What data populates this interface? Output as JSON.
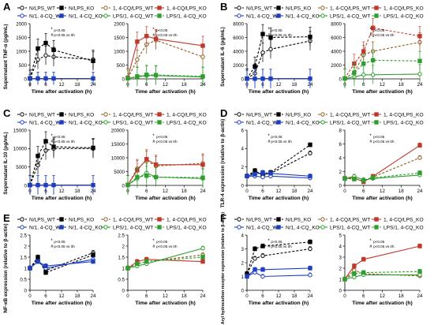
{
  "colors": {
    "N_LPS_WT": "#000000",
    "N_LPS_KO": "#000000",
    "CQ_LPS_WT": "#8c5a1a",
    "CQ_LPS_KO": "#c0392b",
    "N_CQ_WT": "#1f3fbf",
    "N_CQ_KO": "#1f3fbf",
    "LPS_CQ_WT": "#2e9e2e",
    "LPS_CQ_KO": "#2e9e2e"
  },
  "legend_labels": {
    "N_LPS_WT": "N/LPS_WT",
    "N_LPS_KO": "N/LPS_KO",
    "CQ_LPS_WT": "1, 4-CQ/LPS_WT",
    "CQ_LPS_KO": "1, 4-CQ/LPS_KO",
    "N_CQ_WT": "N/1, 4-CQ_WT",
    "N_CQ_KO": "N/1, 4-CQ_KO",
    "LPS_CQ_WT": "LPS/1, 4-CQ_WT",
    "LPS_CQ_KO": "LPS/1, 4-CQ_KO"
  },
  "sig_notes": {
    "p005": "p<0.05",
    "p005_vs0h": "p<0.05 vs 0h"
  },
  "chart_data": [
    {
      "panel": "A",
      "type": "line",
      "ylabel": "Supernatant TNF-α (pg/mL)",
      "xlabel": "Time after activation (h)",
      "x": [
        0,
        3,
        6,
        9,
        24
      ],
      "xticks": [
        0,
        6,
        12,
        18,
        24
      ],
      "ylim": [
        0,
        2000
      ],
      "yticks": [
        0,
        500,
        1000,
        1500,
        2000
      ],
      "left": [
        {
          "key": "N_LPS_WT",
          "dash": true,
          "values": [
            20,
            700,
            850,
            800,
            700
          ]
        },
        {
          "key": "N_LPS_KO",
          "dash": true,
          "values": [
            20,
            1100,
            1300,
            1050,
            650
          ]
        },
        {
          "key": "N_CQ_WT",
          "dash": false,
          "values": [
            10,
            15,
            15,
            15,
            15
          ]
        },
        {
          "key": "N_CQ_KO",
          "dash": false,
          "values": [
            10,
            15,
            15,
            15,
            15
          ]
        }
      ],
      "right": [
        {
          "key": "CQ_LPS_WT",
          "dash": true,
          "values": [
            30,
            700,
            1250,
            1400,
            800
          ]
        },
        {
          "key": "CQ_LPS_KO",
          "dash": false,
          "values": [
            40,
            1350,
            1550,
            1450,
            1200
          ]
        },
        {
          "key": "LPS_CQ_WT",
          "dash": false,
          "values": [
            20,
            70,
            120,
            120,
            70
          ]
        },
        {
          "key": "LPS_CQ_KO",
          "dash": true,
          "values": [
            20,
            90,
            150,
            140,
            90
          ]
        }
      ]
    },
    {
      "panel": "B",
      "type": "line",
      "ylabel": "Supernatant IL-6 (pg/mL)",
      "xlabel": "Time after activation (h)",
      "x": [
        0,
        3,
        6,
        9,
        24
      ],
      "xticks": [
        0,
        6,
        12,
        18,
        24
      ],
      "ylim": [
        0,
        8000
      ],
      "yticks": [
        0,
        2000,
        4000,
        6000,
        8000
      ],
      "left": [
        {
          "key": "N_LPS_WT",
          "dash": true,
          "values": [
            50,
            800,
            3800,
            4300,
            5500
          ]
        },
        {
          "key": "N_LPS_KO",
          "dash": true,
          "values": [
            50,
            1800,
            6500,
            6000,
            6100
          ]
        },
        {
          "key": "N_CQ_WT",
          "dash": false,
          "values": [
            20,
            30,
            30,
            30,
            30
          ]
        },
        {
          "key": "N_CQ_KO",
          "dash": false,
          "values": [
            20,
            30,
            30,
            30,
            30
          ]
        }
      ],
      "right": [
        {
          "key": "CQ_LPS_WT",
          "dash": true,
          "values": [
            80,
            900,
            3500,
            4000,
            5300
          ]
        },
        {
          "key": "CQ_LPS_KO",
          "dash": true,
          "values": [
            80,
            2200,
            4000,
            7400,
            6200
          ]
        },
        {
          "key": "LPS_CQ_WT",
          "dash": false,
          "values": [
            50,
            300,
            600,
            600,
            700
          ]
        },
        {
          "key": "LPS_CQ_KO",
          "dash": true,
          "values": [
            50,
            900,
            2200,
            2700,
            2600
          ]
        }
      ]
    },
    {
      "panel": "C",
      "type": "line",
      "ylabel": "Supernatant IL-10 (pg/mL)",
      "xlabel": "Time after activation (h)",
      "x": [
        0,
        3,
        6,
        9,
        24
      ],
      "xticks": [
        0,
        6,
        12,
        18,
        24
      ],
      "ylim": [
        0,
        20000
      ],
      "yticks": [
        0,
        5000,
        10000,
        15000,
        20000
      ],
      "left_ylim": [
        0,
        15000
      ],
      "left_yticks": [
        0,
        5000,
        10000,
        15000
      ],
      "left": [
        {
          "key": "N_LPS_WT",
          "dash": true,
          "values": [
            100,
            5500,
            9500,
            10000,
            10000
          ]
        },
        {
          "key": "N_LPS_KO",
          "dash": true,
          "values": [
            100,
            8000,
            12000,
            10500,
            10200
          ]
        },
        {
          "key": "N_CQ_WT",
          "dash": false,
          "values": [
            50,
            80,
            80,
            80,
            80
          ]
        },
        {
          "key": "N_CQ_KO",
          "dash": false,
          "values": [
            50,
            80,
            80,
            80,
            80
          ]
        }
      ],
      "right": [
        {
          "key": "CQ_LPS_WT",
          "dash": true,
          "values": [
            200,
            6000,
            9000,
            7000,
            8000
          ]
        },
        {
          "key": "CQ_LPS_KO",
          "dash": false,
          "values": [
            200,
            5500,
            9500,
            7500,
            7500
          ]
        },
        {
          "key": "LPS_CQ_WT",
          "dash": false,
          "values": [
            100,
            2500,
            4500,
            3000,
            2500
          ]
        },
        {
          "key": "LPS_CQ_KO",
          "dash": true,
          "values": [
            100,
            3000,
            3500,
            3000,
            2800
          ]
        }
      ]
    },
    {
      "panel": "D",
      "type": "line",
      "ylabel": "TLR-4 expression (relative to β-actin)",
      "xlabel": "Time after activation (h)",
      "x": [
        0,
        3,
        6,
        9,
        24
      ],
      "xticks": [
        0,
        6,
        12,
        18,
        24
      ],
      "ylim": [
        0,
        8
      ],
      "yticks": [
        0,
        2,
        4,
        6,
        8
      ],
      "left_ylim": [
        0,
        6
      ],
      "left_yticks": [
        0,
        2,
        4,
        6
      ],
      "left": [
        {
          "key": "N_LPS_WT",
          "dash": true,
          "values": [
            1.0,
            1.4,
            1.2,
            1.3,
            3.5
          ]
        },
        {
          "key": "N_LPS_KO",
          "dash": true,
          "values": [
            1.0,
            1.6,
            1.1,
            1.4,
            4.4
          ]
        },
        {
          "key": "N_CQ_WT",
          "dash": false,
          "values": [
            1.0,
            1.0,
            0.9,
            1.0,
            0.8
          ]
        },
        {
          "key": "N_CQ_KO",
          "dash": false,
          "values": [
            1.0,
            1.2,
            1.4,
            1.3,
            1.0
          ]
        }
      ],
      "right": [
        {
          "key": "CQ_LPS_WT",
          "dash": true,
          "values": [
            1.0,
            1.0,
            0.6,
            1.2,
            4.0
          ]
        },
        {
          "key": "CQ_LPS_KO",
          "dash": false,
          "values": [
            1.0,
            1.1,
            0.5,
            1.3,
            5.8
          ]
        },
        {
          "key": "LPS_CQ_WT",
          "dash": false,
          "values": [
            1.0,
            1.3,
            0.8,
            1.0,
            1.5
          ]
        },
        {
          "key": "LPS_CQ_KO",
          "dash": true,
          "values": [
            1.0,
            0.9,
            0.7,
            1.1,
            1.8
          ]
        }
      ]
    },
    {
      "panel": "E",
      "type": "line",
      "ylabel": "NF-κB expression (relative to β-actin)",
      "xlabel": "Time after activation (h)",
      "x": [
        0,
        3,
        6,
        24
      ],
      "xticks": [
        0,
        6,
        12,
        18,
        24
      ],
      "ylim": [
        0.0,
        2.5
      ],
      "yticks": [
        0.0,
        0.5,
        1.0,
        1.5,
        2.0,
        2.5
      ],
      "left": [
        {
          "key": "N_LPS_WT",
          "dash": true,
          "values": [
            1.0,
            1.4,
            0.9,
            1.7
          ]
        },
        {
          "key": "N_LPS_KO",
          "dash": true,
          "values": [
            1.0,
            1.5,
            0.8,
            1.6
          ]
        },
        {
          "key": "N_CQ_WT",
          "dash": false,
          "values": [
            1.0,
            1.3,
            1.0,
            1.4
          ]
        },
        {
          "key": "N_CQ_KO",
          "dash": false,
          "values": [
            1.0,
            1.3,
            1.1,
            1.3
          ]
        }
      ],
      "right": [
        {
          "key": "CQ_LPS_WT",
          "dash": true,
          "values": [
            1.0,
            1.2,
            1.3,
            1.6
          ]
        },
        {
          "key": "CQ_LPS_KO",
          "dash": false,
          "values": [
            1.0,
            1.3,
            1.4,
            1.3
          ]
        },
        {
          "key": "LPS_CQ_WT",
          "dash": false,
          "values": [
            1.0,
            1.1,
            1.2,
            1.9
          ]
        },
        {
          "key": "LPS_CQ_KO",
          "dash": true,
          "values": [
            1.0,
            1.2,
            1.3,
            1.5
          ]
        }
      ]
    },
    {
      "panel": "F",
      "type": "line",
      "ylabel": "Aryl hydrocarbon receptor expression (relative to β-actin)",
      "xlabel": "Time after activation (h)",
      "x": [
        0,
        3,
        6,
        24
      ],
      "xticks": [
        0,
        6,
        12,
        18,
        24
      ],
      "ylim": [
        0,
        5
      ],
      "yticks": [
        0,
        1,
        2,
        3,
        4,
        5
      ],
      "left_ylim": [
        0,
        4
      ],
      "left_yticks": [
        0,
        1,
        2,
        3,
        4
      ],
      "left": [
        {
          "key": "N_LPS_WT",
          "dash": true,
          "values": [
            1.2,
            2.3,
            2.5,
            3.0
          ]
        },
        {
          "key": "N_LPS_KO",
          "dash": true,
          "values": [
            1.2,
            3.0,
            3.2,
            3.5
          ]
        },
        {
          "key": "N_CQ_WT",
          "dash": false,
          "values": [
            1.0,
            1.3,
            1.0,
            1.1
          ]
        },
        {
          "key": "N_CQ_KO",
          "dash": false,
          "values": [
            1.0,
            1.5,
            1.5,
            1.6
          ]
        }
      ],
      "right": [
        {
          "key": "CQ_LPS_WT",
          "dash": true,
          "values": [
            1.0,
            1.8,
            1.5,
            1.3
          ]
        },
        {
          "key": "CQ_LPS_KO",
          "dash": false,
          "values": [
            1.0,
            2.2,
            2.8,
            4.0
          ]
        },
        {
          "key": "LPS_CQ_WT",
          "dash": false,
          "values": [
            1.0,
            1.2,
            1.4,
            1.4
          ]
        },
        {
          "key": "LPS_CQ_KO",
          "dash": true,
          "values": [
            1.0,
            1.5,
            1.6,
            1.7
          ]
        }
      ]
    }
  ]
}
